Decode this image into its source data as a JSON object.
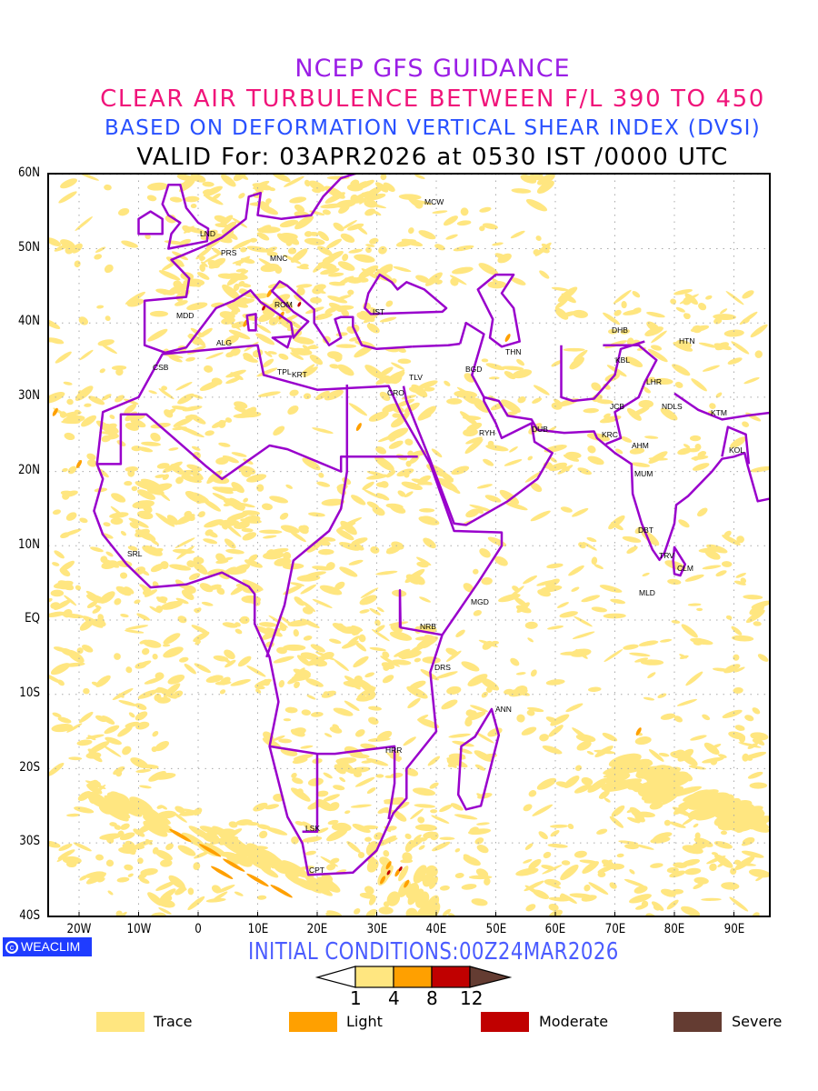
{
  "title": {
    "line1": "NCEP GFS GUIDANCE",
    "line2": "CLEAR AIR TURBULENCE BETWEEN F/L 390 TO 450",
    "line3": "BASED ON DEFORMATION VERTICAL SHEAR INDEX (DVSI)",
    "line4": "VALID For: 03APR2026 at 0530 IST /0000 UTC"
  },
  "axes": {
    "lat_labels": [
      "60N",
      "50N",
      "40N",
      "30N",
      "20N",
      "10N",
      "EQ",
      "10S",
      "20S",
      "30S",
      "40S"
    ],
    "lon_labels": [
      "20W",
      "10W",
      "0",
      "10E",
      "20E",
      "30E",
      "40E",
      "50E",
      "60E",
      "70E",
      "80E",
      "90E"
    ]
  },
  "cities": [
    "LND",
    "PRS",
    "MNC",
    "ROM",
    "MDD",
    "ALG",
    "CSB",
    "TPL",
    "KRT",
    "IST",
    "MCW",
    "TLV",
    "CRO",
    "BGD",
    "THN",
    "RYH",
    "DUB",
    "DHB",
    "KBL",
    "HTN",
    "LHR",
    "JCB",
    "NDLS",
    "KTM",
    "KRC",
    "AHM",
    "KOL",
    "MUM",
    "DBT",
    "TRV",
    "CLM",
    "MLD",
    "SRL",
    "MGD",
    "NRB",
    "DRS",
    "ANN",
    "HRR",
    "LSK",
    "CPT"
  ],
  "logo": "WEACLIM",
  "initial_conditions": "INITIAL CONDITIONS:00Z24MAR2026",
  "colorbar": {
    "ticks": [
      "1",
      "4",
      "8",
      "12"
    ],
    "colors": [
      "#ffe680",
      "#ffa000",
      "#c00000",
      "#643c32"
    ]
  },
  "legend": [
    {
      "label": "Trace",
      "color": "#ffe680"
    },
    {
      "label": "Light",
      "color": "#ffa000"
    },
    {
      "label": "Moderate",
      "color": "#c00000"
    },
    {
      "label": "Severe",
      "color": "#643c32"
    }
  ],
  "colors": {
    "boundary": "#9900cc",
    "grid": "#aaaaaa"
  }
}
